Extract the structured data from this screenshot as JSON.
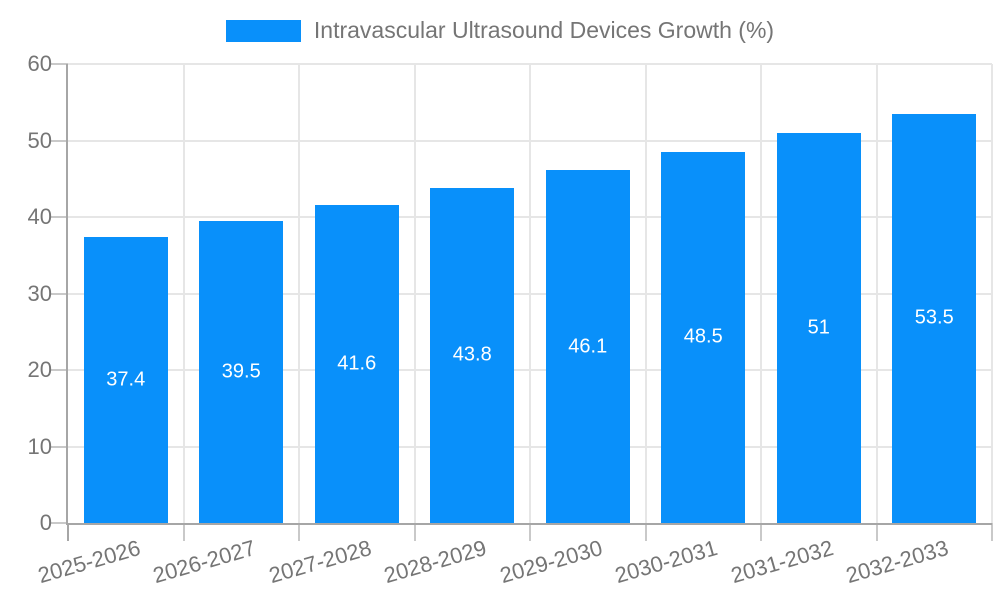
{
  "legend": {
    "label": "Intravascular Ultrasound Devices Growth (%)"
  },
  "chart_data": {
    "type": "bar",
    "title": "Intravascular Ultrasound Devices Growth (%)",
    "categories": [
      "2025-2026",
      "2026-2027",
      "2027-2028",
      "2028-2029",
      "2029-2030",
      "2030-2031",
      "2031-2032",
      "2032-2033"
    ],
    "values": [
      37.4,
      39.5,
      41.6,
      43.8,
      46.1,
      48.5,
      51,
      53.5
    ],
    "series": [
      {
        "name": "Intravascular Ultrasound Devices Growth (%)",
        "values": [
          37.4,
          39.5,
          41.6,
          43.8,
          46.1,
          48.5,
          51,
          53.5
        ]
      }
    ],
    "xlabel": "",
    "ylabel": "",
    "ylim": [
      0,
      60
    ],
    "yticks": [
      0,
      10,
      20,
      30,
      40,
      50,
      60
    ],
    "grid": true,
    "legend_position": "top-center",
    "value_labels": "centered-inside-bars",
    "x_tick_rotation_deg": -16
  },
  "colors": {
    "bar": "#0990FA",
    "grid": "#e6e6e6",
    "axis_line": "#a6a6a6",
    "tick": "#c9c9c9",
    "axis_text": "#757575",
    "value_label": "#ffffff",
    "background": "#ffffff"
  }
}
